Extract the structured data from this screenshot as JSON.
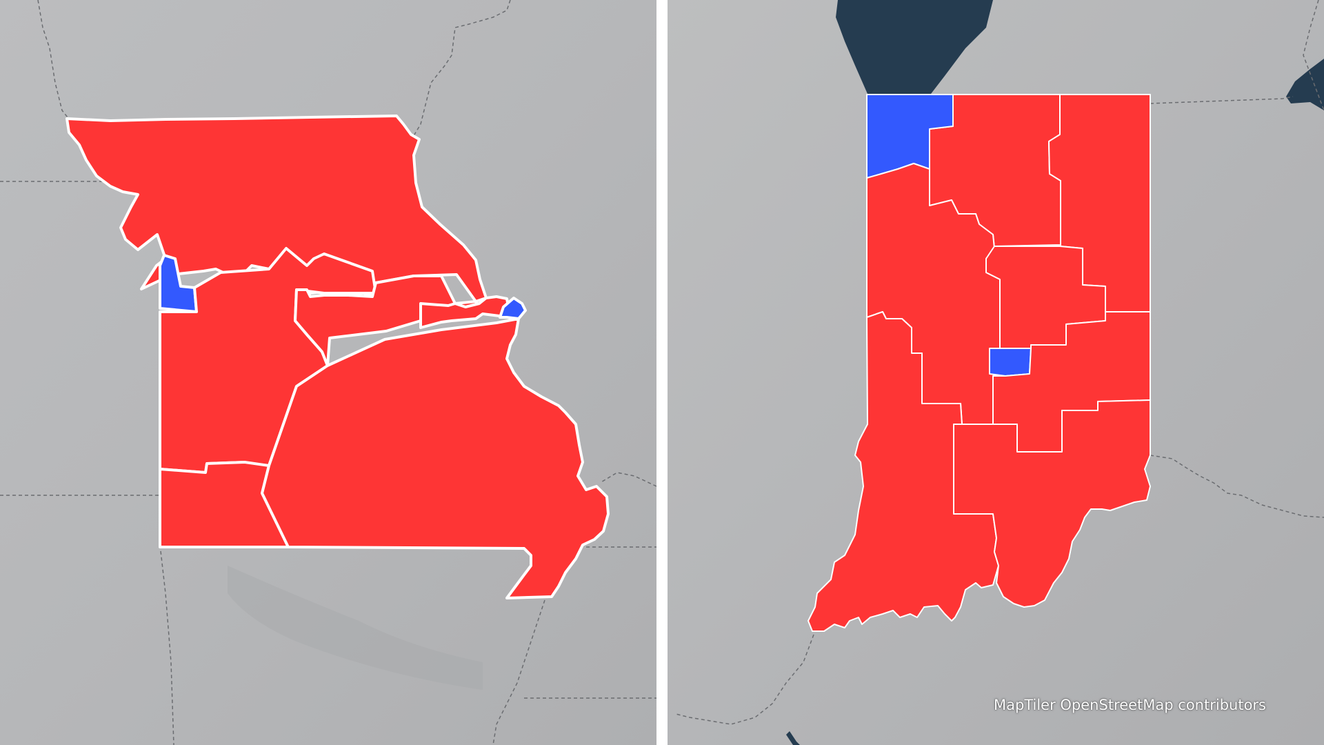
{
  "map": {
    "attribution": "MapTiler OpenStreetMap contributors",
    "colors": {
      "republican": "#fe3535",
      "democrat": "#3359fe",
      "district_border": "#ffffff",
      "basemap": "#b7b8ba",
      "water": "#253c50",
      "boundary_line": "#6a6c70",
      "divider": "#ffffff"
    },
    "panels": [
      {
        "id": "missouri",
        "districts": [
          {
            "id": "MO-1",
            "party": "democrat"
          },
          {
            "id": "MO-2",
            "party": "republican"
          },
          {
            "id": "MO-3",
            "party": "republican"
          },
          {
            "id": "MO-4",
            "party": "republican"
          },
          {
            "id": "MO-5",
            "party": "democrat"
          },
          {
            "id": "MO-6",
            "party": "republican"
          },
          {
            "id": "MO-7",
            "party": "republican"
          },
          {
            "id": "MO-8",
            "party": "republican"
          }
        ]
      },
      {
        "id": "indiana",
        "districts": [
          {
            "id": "IN-1",
            "party": "democrat"
          },
          {
            "id": "IN-2",
            "party": "republican"
          },
          {
            "id": "IN-3",
            "party": "republican"
          },
          {
            "id": "IN-4",
            "party": "republican"
          },
          {
            "id": "IN-5",
            "party": "republican"
          },
          {
            "id": "IN-6",
            "party": "republican"
          },
          {
            "id": "IN-7",
            "party": "democrat"
          },
          {
            "id": "IN-8",
            "party": "republican"
          },
          {
            "id": "IN-9",
            "party": "republican"
          }
        ]
      }
    ]
  }
}
